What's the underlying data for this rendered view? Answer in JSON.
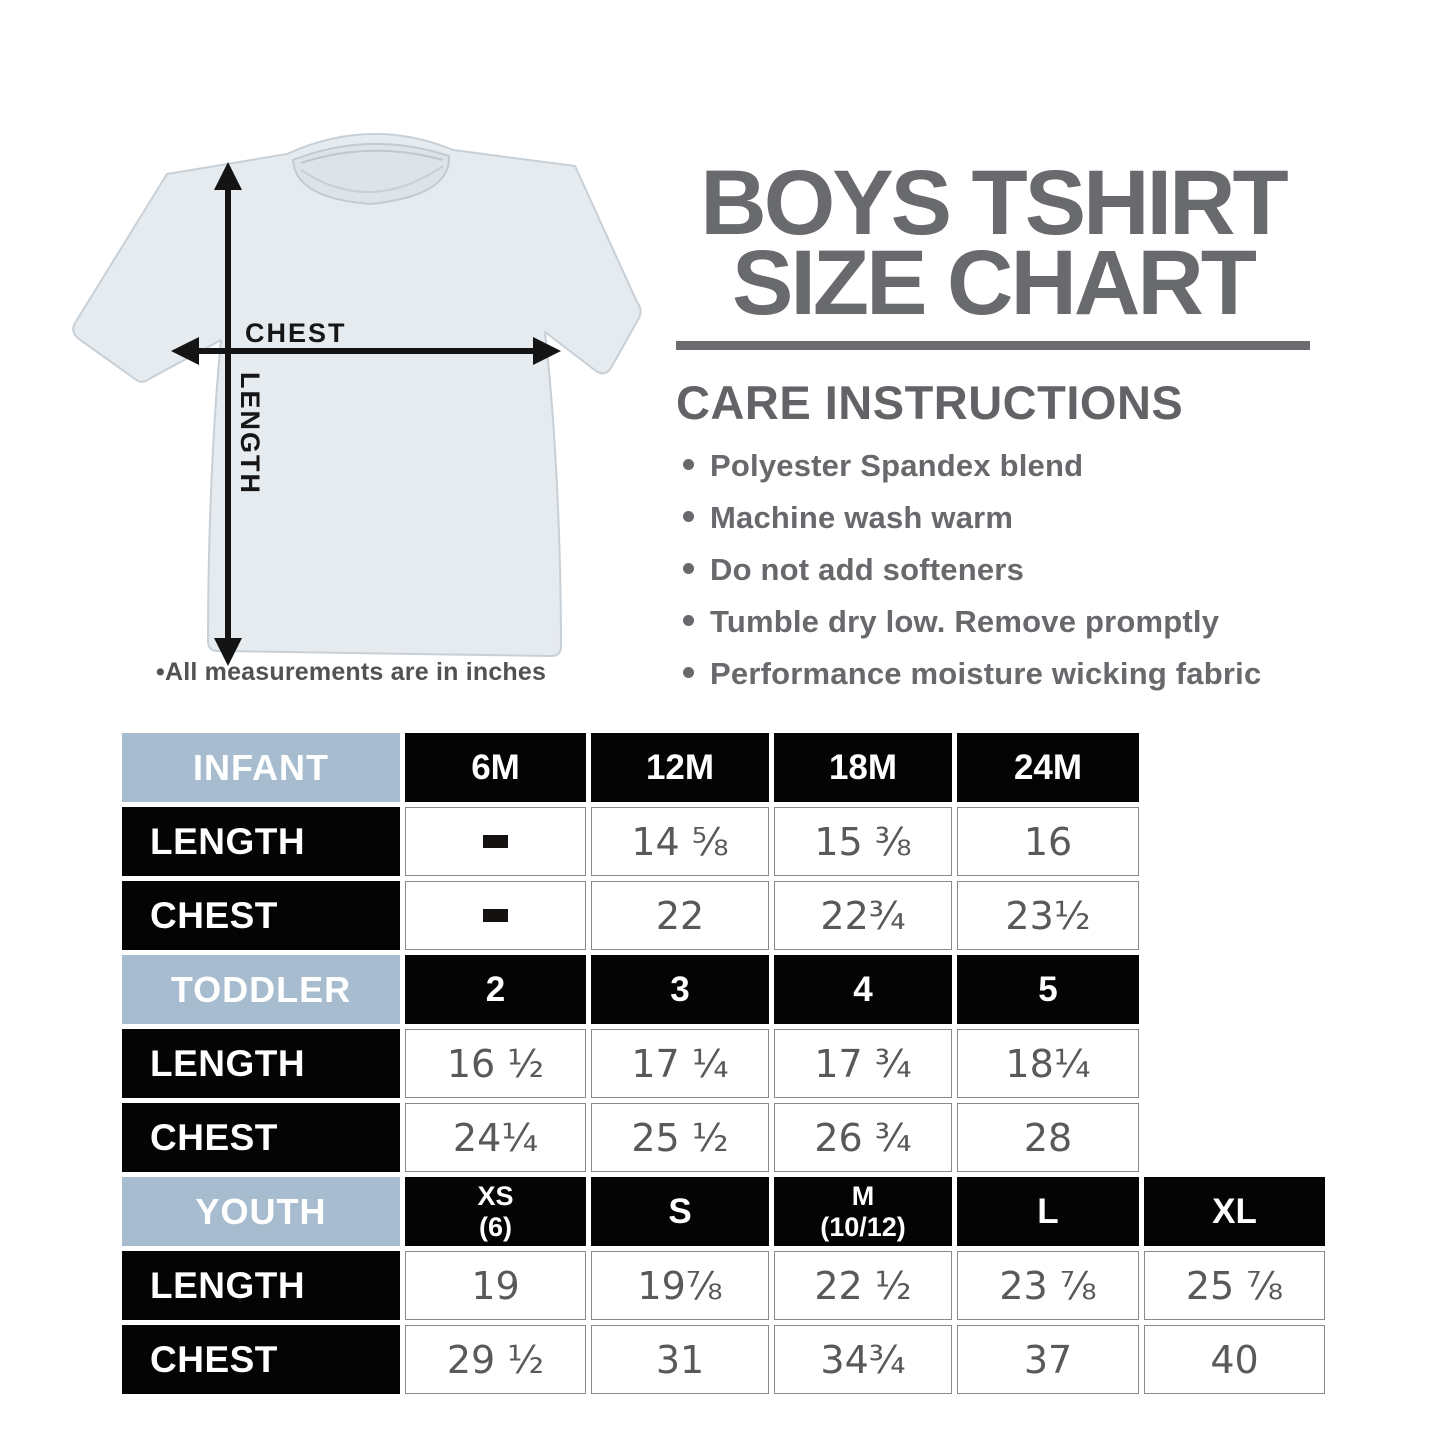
{
  "tshirt_diagram": {
    "chest_label": "CHEST",
    "length_label": "LENGTH",
    "note": "•All measurements are in inches",
    "shirt_fill": "#e6ebef",
    "shirt_outline": "#c8d0d7",
    "arrow_color": "#141414"
  },
  "header": {
    "title_line1": "BOYS TSHIRT",
    "title_line2": "SIZE CHART",
    "title_color": "#696a6d"
  },
  "care": {
    "heading": "CARE INSTRUCTIONS",
    "items": [
      "Polyester Spandex blend",
      "Machine wash warm",
      "Do not add softeners",
      "Tumble dry low. Remove promptly",
      "Performance moisture wicking fabric"
    ]
  },
  "size_table": {
    "columns_total": 6,
    "no_data_symbol": "-",
    "colors": {
      "group_header_bg": "#a8bcd0",
      "size_header_bg": "#040404",
      "row_label_bg": "#040404",
      "header_text": "#ffffff",
      "value_text": "#58595b",
      "value_border": "#8a8a8a"
    },
    "sections": [
      {
        "group": "INFANT",
        "sizes": [
          "6M",
          "12M",
          "18M",
          "24M"
        ],
        "rows": [
          {
            "label": "LENGTH",
            "values": [
              "-",
              "14 ⅝",
              "15 ⅜",
              "16"
            ]
          },
          {
            "label": "CHEST",
            "values": [
              "-",
              "22",
              "22¾",
              "23½"
            ]
          }
        ]
      },
      {
        "group": "TODDLER",
        "sizes": [
          "2",
          "3",
          "4",
          "5"
        ],
        "rows": [
          {
            "label": "LENGTH",
            "values": [
              "16 ½",
              "17 ¼",
              "17 ¾",
              "18¼"
            ]
          },
          {
            "label": "CHEST",
            "values": [
              "24¼",
              "25 ½",
              "26 ¾",
              "28"
            ]
          }
        ]
      },
      {
        "group": "YOUTH",
        "sizes": [
          "XS\n(6)",
          "S",
          "M\n(10/12)",
          "L",
          "XL"
        ],
        "rows": [
          {
            "label": "LENGTH",
            "values": [
              "19",
              "19⅞",
              "22 ½",
              "23 ⅞",
              "25 ⅞"
            ]
          },
          {
            "label": "CHEST",
            "values": [
              "29 ½",
              "31",
              "34¾",
              "37",
              "40"
            ]
          }
        ]
      }
    ]
  },
  "chart_data": {
    "type": "table",
    "title": "BOYS TSHIRT SIZE CHART",
    "units": "inches",
    "sections": [
      {
        "group": "INFANT",
        "sizes": [
          "6M",
          "12M",
          "18M",
          "24M"
        ],
        "length": [
          null,
          14.625,
          15.375,
          16
        ],
        "chest": [
          null,
          22,
          22.75,
          23.5
        ]
      },
      {
        "group": "TODDLER",
        "sizes": [
          "2",
          "3",
          "4",
          "5"
        ],
        "length": [
          16.5,
          17.25,
          17.75,
          18.25
        ],
        "chest": [
          24.25,
          25.5,
          26.75,
          28
        ]
      },
      {
        "group": "YOUTH",
        "sizes": [
          "XS (6)",
          "S",
          "M (10/12)",
          "L",
          "XL"
        ],
        "length": [
          19,
          19.875,
          22.5,
          23.875,
          25.875
        ],
        "chest": [
          29.5,
          31,
          34.75,
          37,
          40
        ]
      }
    ]
  }
}
